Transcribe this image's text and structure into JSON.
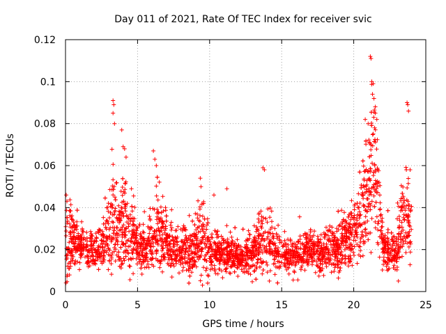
{
  "chart_data": {
    "type": "scatter",
    "title": "Day 011 of 2021, Rate Of TEC Index for receiver svic",
    "xlabel": "GPS time / hours",
    "ylabel": "ROTI / TECUs",
    "xlim": [
      0,
      25
    ],
    "ylim": [
      0,
      0.12
    ],
    "xticks": [
      "0",
      "5",
      "10",
      "15",
      "20",
      "25"
    ],
    "yticks": [
      "0",
      "0.02",
      "0.04",
      "0.06",
      "0.08",
      "0.1",
      "0.12"
    ],
    "grid": true,
    "marker": "+",
    "color": "#ff0000",
    "series": [
      {
        "name": "ROTI",
        "description": "Dense scatter of ROTI samples across 0-24 h; baseline ~0.01-0.04 TECU/s with enhancements near 3-4 h (to ~0.09), 6 h (~0.065), 9.5 h (~0.054), 14 h (~0.058), 21-21.5 h (to ~0.112) and 23.5-24 h (~0.09).",
        "envelope": [
          [
            0,
            0.022,
            0.012
          ],
          [
            0.5,
            0.025,
            0.008
          ],
          [
            1,
            0.022,
            0.006
          ],
          [
            1.5,
            0.021,
            0.006
          ],
          [
            2,
            0.02,
            0.006
          ],
          [
            2.5,
            0.021,
            0.007
          ],
          [
            3,
            0.026,
            0.01
          ],
          [
            3.3,
            0.035,
            0.02
          ],
          [
            3.6,
            0.03,
            0.012
          ],
          [
            4,
            0.033,
            0.015
          ],
          [
            4.5,
            0.026,
            0.01
          ],
          [
            5,
            0.021,
            0.007
          ],
          [
            5.5,
            0.02,
            0.006
          ],
          [
            6,
            0.024,
            0.009
          ],
          [
            6.3,
            0.03,
            0.012
          ],
          [
            6.8,
            0.025,
            0.01
          ],
          [
            7.5,
            0.02,
            0.007
          ],
          [
            8,
            0.018,
            0.007
          ],
          [
            8.5,
            0.019,
            0.007
          ],
          [
            9,
            0.023,
            0.009
          ],
          [
            9.5,
            0.025,
            0.01
          ],
          [
            10,
            0.019,
            0.007
          ],
          [
            10.5,
            0.018,
            0.006
          ],
          [
            11,
            0.018,
            0.006
          ],
          [
            12,
            0.016,
            0.005
          ],
          [
            13,
            0.018,
            0.006
          ],
          [
            13.5,
            0.022,
            0.009
          ],
          [
            14,
            0.024,
            0.01
          ],
          [
            14.5,
            0.02,
            0.007
          ],
          [
            15,
            0.018,
            0.006
          ],
          [
            16,
            0.018,
            0.006
          ],
          [
            17,
            0.019,
            0.006
          ],
          [
            18,
            0.019,
            0.007
          ],
          [
            19,
            0.022,
            0.008
          ],
          [
            19.5,
            0.024,
            0.008
          ],
          [
            20,
            0.027,
            0.01
          ],
          [
            20.5,
            0.035,
            0.013
          ],
          [
            21,
            0.05,
            0.018
          ],
          [
            21.3,
            0.06,
            0.022
          ],
          [
            21.7,
            0.04,
            0.015
          ],
          [
            22,
            0.022,
            0.008
          ],
          [
            22.5,
            0.018,
            0.006
          ],
          [
            23,
            0.018,
            0.007
          ],
          [
            23.3,
            0.032,
            0.012
          ],
          [
            23.7,
            0.036,
            0.012
          ],
          [
            24,
            0.03,
            0.01
          ]
        ],
        "peaks": [
          [
            0.05,
            0.046
          ],
          [
            0.1,
            0.043
          ],
          [
            3.3,
            0.091
          ],
          [
            3.35,
            0.089
          ],
          [
            3.4,
            0.08
          ],
          [
            3.3,
            0.085
          ],
          [
            3.9,
            0.077
          ],
          [
            4.0,
            0.069
          ],
          [
            4.1,
            0.068
          ],
          [
            4.2,
            0.064
          ],
          [
            6.1,
            0.067
          ],
          [
            6.2,
            0.063
          ],
          [
            6.3,
            0.06
          ],
          [
            9.35,
            0.054
          ],
          [
            9.4,
            0.05
          ],
          [
            10.3,
            0.046
          ],
          [
            11.2,
            0.049
          ],
          [
            13.7,
            0.059
          ],
          [
            13.8,
            0.058
          ],
          [
            20.8,
            0.082
          ],
          [
            21.0,
            0.08
          ],
          [
            21.15,
            0.112
          ],
          [
            21.2,
            0.111
          ],
          [
            21.25,
            0.1
          ],
          [
            21.35,
            0.099
          ],
          [
            21.3,
            0.094
          ],
          [
            21.4,
            0.092
          ],
          [
            21.5,
            0.088
          ],
          [
            21.5,
            0.085
          ],
          [
            21.6,
            0.082
          ],
          [
            21.45,
            0.078
          ],
          [
            23.7,
            0.09
          ],
          [
            23.75,
            0.089
          ],
          [
            23.8,
            0.086
          ],
          [
            23.65,
            0.058
          ],
          [
            9.5,
            0.003
          ],
          [
            23.1,
            0.005
          ]
        ]
      }
    ]
  }
}
